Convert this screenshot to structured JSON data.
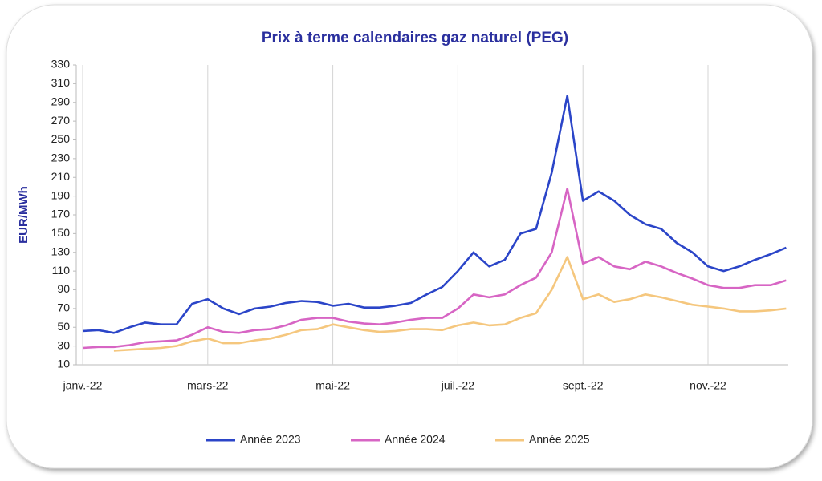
{
  "chart_data": {
    "type": "line",
    "title": "Prix à terme calendaires gaz naturel (PEG)",
    "y_label": "EUR/MWh",
    "categories": [
      "janv.-22",
      null,
      null,
      null,
      null,
      null,
      null,
      null,
      "mars-22",
      null,
      null,
      null,
      null,
      null,
      null,
      null,
      "mai-22",
      null,
      null,
      null,
      null,
      null,
      null,
      null,
      "juil.-22",
      null,
      null,
      null,
      null,
      null,
      null,
      null,
      "sept.-22",
      null,
      null,
      null,
      null,
      null,
      null,
      null,
      "nov.-22",
      null,
      null,
      null,
      null,
      null
    ],
    "series": [
      {
        "name": "Année 2023",
        "color": "#2b45c8",
        "values": [
          46,
          47,
          44,
          50,
          55,
          53,
          53,
          75,
          80,
          70,
          64,
          70,
          72,
          76,
          78,
          77,
          73,
          75,
          71,
          71,
          73,
          76,
          85,
          93,
          110,
          130,
          115,
          122,
          150,
          155,
          215,
          297,
          185,
          195,
          185,
          170,
          160,
          155,
          140,
          130,
          115,
          110,
          115,
          122,
          128,
          135
        ]
      },
      {
        "name": "Année 2024",
        "color": "#d765c4",
        "values": [
          28,
          29,
          29,
          31,
          34,
          35,
          36,
          42,
          50,
          45,
          44,
          47,
          48,
          52,
          58,
          60,
          60,
          56,
          54,
          53,
          55,
          58,
          60,
          60,
          70,
          85,
          82,
          85,
          95,
          103,
          130,
          198,
          118,
          125,
          115,
          112,
          120,
          115,
          108,
          102,
          95,
          92,
          92,
          95,
          95,
          100
        ]
      },
      {
        "name": "Année 2025",
        "color": "#f5c77e",
        "values": [
          null,
          null,
          25,
          26,
          27,
          28,
          30,
          35,
          38,
          33,
          33,
          36,
          38,
          42,
          47,
          48,
          53,
          50,
          47,
          45,
          46,
          48,
          48,
          47,
          52,
          55,
          52,
          53,
          60,
          65,
          90,
          125,
          80,
          85,
          77,
          80,
          85,
          82,
          78,
          74,
          72,
          70,
          67,
          67,
          68,
          70
        ]
      }
    ],
    "ylim": [
      10,
      330
    ],
    "yticks": [
      10,
      30,
      50,
      70,
      90,
      110,
      130,
      150,
      170,
      190,
      210,
      230,
      250,
      270,
      290,
      310,
      330
    ],
    "grid": "x",
    "legend": "bottom"
  }
}
